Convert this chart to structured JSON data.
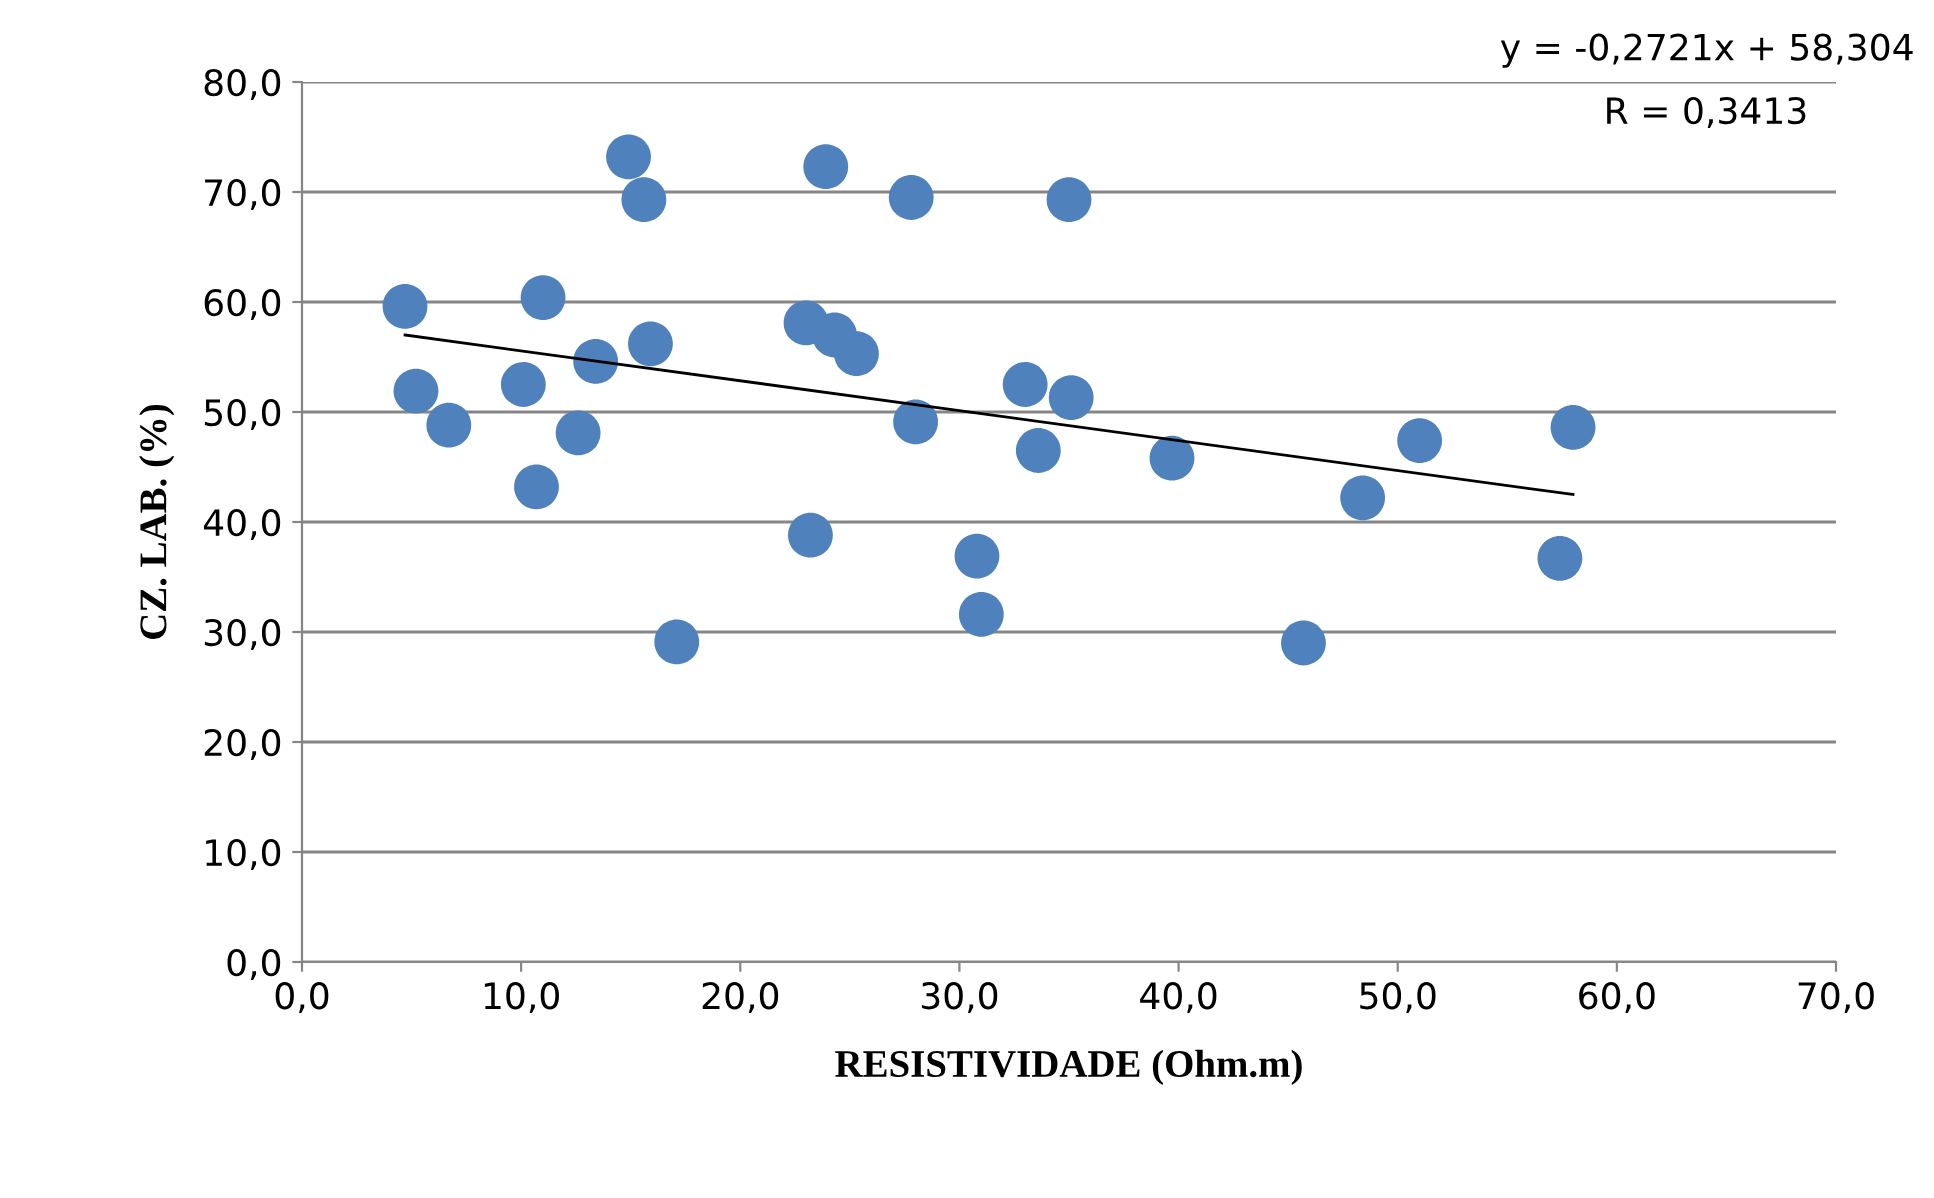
{
  "chart_data": {
    "type": "scatter",
    "xlabel": "RESISTIVIDADE (Ohm.m)",
    "ylabel": "CZ. LAB. (%)",
    "annotations": [
      "y = -0,2721x + 58,304",
      "R = 0,3413"
    ],
    "series": [
      {
        "color": "#4f81bd",
        "marker": "circle",
        "x": [
          4.7,
          5.2,
          6.7,
          10.1,
          10.7,
          11.0,
          12.6,
          13.4,
          14.9,
          15.6,
          15.9,
          17.1,
          23.0,
          23.2,
          23.9,
          24.3,
          25.3,
          27.8,
          28.0,
          30.8,
          31.0,
          33.0,
          33.6,
          35.0,
          35.1,
          48.4,
          45.7,
          39.7,
          51.0,
          58.0,
          57.4
        ],
        "values": [
          59.6,
          51.9,
          48.8,
          52.5,
          43.2,
          60.4,
          48.1,
          54.6,
          73.2,
          69.3,
          56.2,
          29.1,
          58.1,
          38.8,
          72.3,
          57.0,
          55.3,
          69.5,
          49.1,
          36.9,
          31.6,
          52.5,
          46.5,
          69.3,
          51.3,
          42.2,
          29.0,
          45.8,
          47.4,
          48.6,
          36.7
        ]
      },
      {
        "type": "line",
        "color": "#000000",
        "line_style": "solid",
        "x": [
          4.7,
          58.0
        ],
        "values": [
          57.0,
          42.5
        ]
      }
    ],
    "xlim": [
      0,
      70
    ],
    "ylim": [
      0,
      80
    ],
    "xticks": [
      {
        "value": 0,
        "label": "0,0"
      },
      {
        "value": 10,
        "label": "10,0"
      },
      {
        "value": 20,
        "label": "20,0"
      },
      {
        "value": 30,
        "label": "30,0"
      },
      {
        "value": 40,
        "label": "40,0"
      },
      {
        "value": 50,
        "label": "50,0"
      },
      {
        "value": 60,
        "label": "60,0"
      },
      {
        "value": 70,
        "label": "70,0"
      }
    ],
    "yticks": [
      {
        "value": 0,
        "label": "0,0"
      },
      {
        "value": 10,
        "label": "10,0"
      },
      {
        "value": 20,
        "label": "20,0"
      },
      {
        "value": 30,
        "label": "30,0"
      },
      {
        "value": 40,
        "label": "40,0"
      },
      {
        "value": 50,
        "label": "50,0"
      },
      {
        "value": 60,
        "label": "60,0"
      },
      {
        "value": 70,
        "label": "70,0"
      },
      {
        "value": 80,
        "label": "80,0"
      }
    ],
    "grid": "y",
    "legend": false
  }
}
